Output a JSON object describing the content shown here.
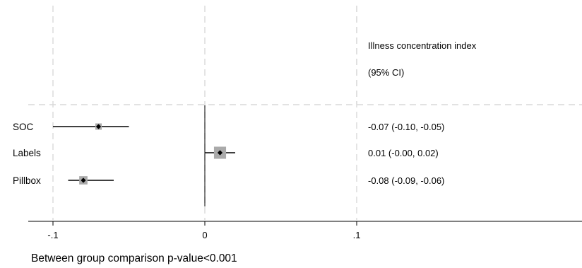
{
  "chart_data": {
    "type": "forest",
    "column_header": [
      "Illness concentration index",
      "(95% CI)"
    ],
    "rows": [
      {
        "label": "SOC",
        "estimate": -0.07,
        "ci_low": -0.1,
        "ci_high": -0.05,
        "ci_text": "-0.07 (-0.10, -0.05)",
        "weight": 1.0
      },
      {
        "label": "Labels",
        "estimate": 0.01,
        "ci_low": -0.0,
        "ci_high": 0.02,
        "ci_text": "0.01 (-0.00, 0.02)",
        "weight": 1.9
      },
      {
        "label": "Pillbox",
        "estimate": -0.08,
        "ci_low": -0.09,
        "ci_high": -0.06,
        "ci_text": "-0.08 (-0.09, -0.06)",
        "weight": 1.3
      }
    ],
    "x_ticks": [
      -0.1,
      0,
      0.1
    ],
    "x_tick_labels": [
      "-.1",
      "0",
      ".1"
    ],
    "xlim": [
      -0.1,
      0.1
    ],
    "reference_line": 0,
    "grid": true,
    "footnote": "Between group comparison p-value<0.001"
  }
}
